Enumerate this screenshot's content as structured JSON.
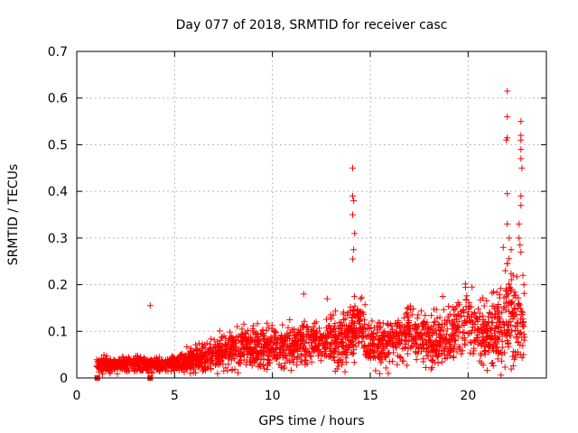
{
  "chart_data": {
    "type": "scatter",
    "title": "Day 077 of 2018, SRMTID for receiver casc",
    "xlabel": "GPS time / hours",
    "ylabel": "SRMTID / TECUs",
    "xlim": [
      0,
      24
    ],
    "ylim": [
      0,
      0.7
    ],
    "xticks": [
      0,
      5,
      10,
      15,
      20
    ],
    "yticks": [
      0,
      0.1,
      0.2,
      0.3,
      0.4,
      0.5,
      0.6,
      0.7
    ],
    "grid": true,
    "marker": "+",
    "marker_color": "#ff0000",
    "isolated_points": [
      {
        "x": 3.75,
        "y": 0.155
      },
      {
        "x": 14.1,
        "y": 0.45
      },
      {
        "x": 14.1,
        "y": 0.39
      },
      {
        "x": 14.15,
        "y": 0.38
      },
      {
        "x": 14.1,
        "y": 0.35
      },
      {
        "x": 14.2,
        "y": 0.31
      },
      {
        "x": 14.15,
        "y": 0.275
      },
      {
        "x": 14.1,
        "y": 0.255
      },
      {
        "x": 22.0,
        "y": 0.615
      },
      {
        "x": 22.0,
        "y": 0.56
      },
      {
        "x": 22.0,
        "y": 0.515
      },
      {
        "x": 21.95,
        "y": 0.51
      },
      {
        "x": 22.7,
        "y": 0.55
      },
      {
        "x": 22.7,
        "y": 0.52
      },
      {
        "x": 22.7,
        "y": 0.51
      },
      {
        "x": 22.7,
        "y": 0.49
      },
      {
        "x": 22.7,
        "y": 0.47
      },
      {
        "x": 22.75,
        "y": 0.45
      },
      {
        "x": 22.0,
        "y": 0.395
      },
      {
        "x": 22.7,
        "y": 0.39
      },
      {
        "x": 22.7,
        "y": 0.37
      },
      {
        "x": 22.0,
        "y": 0.33
      },
      {
        "x": 22.6,
        "y": 0.33
      },
      {
        "x": 22.1,
        "y": 0.3
      },
      {
        "x": 22.6,
        "y": 0.3
      },
      {
        "x": 22.65,
        "y": 0.285
      },
      {
        "x": 21.8,
        "y": 0.28
      },
      {
        "x": 22.2,
        "y": 0.275
      },
      {
        "x": 22.7,
        "y": 0.27
      },
      {
        "x": 22.0,
        "y": 0.245
      },
      {
        "x": 21.9,
        "y": 0.23
      },
      {
        "x": 22.3,
        "y": 0.22
      },
      {
        "x": 22.8,
        "y": 0.22
      },
      {
        "x": 22.85,
        "y": 0.2
      },
      {
        "x": 20.2,
        "y": 0.195
      },
      {
        "x": 21.3,
        "y": 0.185
      },
      {
        "x": 11.6,
        "y": 0.18
      },
      {
        "x": 18.7,
        "y": 0.175
      },
      {
        "x": 14.5,
        "y": 0.17
      },
      {
        "x": 12.8,
        "y": 0.17
      }
    ],
    "trend": {
      "x": [
        1.0,
        2.0,
        3.0,
        4.0,
        5.0,
        6.0,
        7.0,
        8.0,
        9.0,
        10.0,
        11.0,
        12.0,
        13.0,
        13.5,
        14.0,
        14.5,
        15.0,
        16.0,
        17.0,
        18.0,
        19.0,
        20.0,
        21.0,
        21.5,
        22.0,
        22.5,
        23.0
      ],
      "y": [
        0.028,
        0.028,
        0.03,
        0.028,
        0.03,
        0.04,
        0.05,
        0.06,
        0.065,
        0.07,
        0.07,
        0.075,
        0.08,
        0.075,
        0.1,
        0.12,
        0.07,
        0.07,
        0.1,
        0.08,
        0.09,
        0.12,
        0.09,
        0.1,
        0.14,
        0.12,
        0.1
      ]
    },
    "spread": {
      "x": [
        1.0,
        5.0,
        6.0,
        8.0,
        10.0,
        12.0,
        13.0,
        14.0,
        15.0,
        17.0,
        19.0,
        20.0,
        21.0,
        22.0,
        23.0
      ],
      "y": [
        0.012,
        0.012,
        0.02,
        0.03,
        0.035,
        0.035,
        0.04,
        0.05,
        0.035,
        0.04,
        0.045,
        0.05,
        0.045,
        0.08,
        0.06
      ]
    },
    "x_start": 1.0,
    "x_end": 22.9,
    "sample_count": 2400,
    "zero_points": [
      {
        "x": 1.05,
        "y": 0
      },
      {
        "x": 3.75,
        "y": 0
      }
    ]
  }
}
